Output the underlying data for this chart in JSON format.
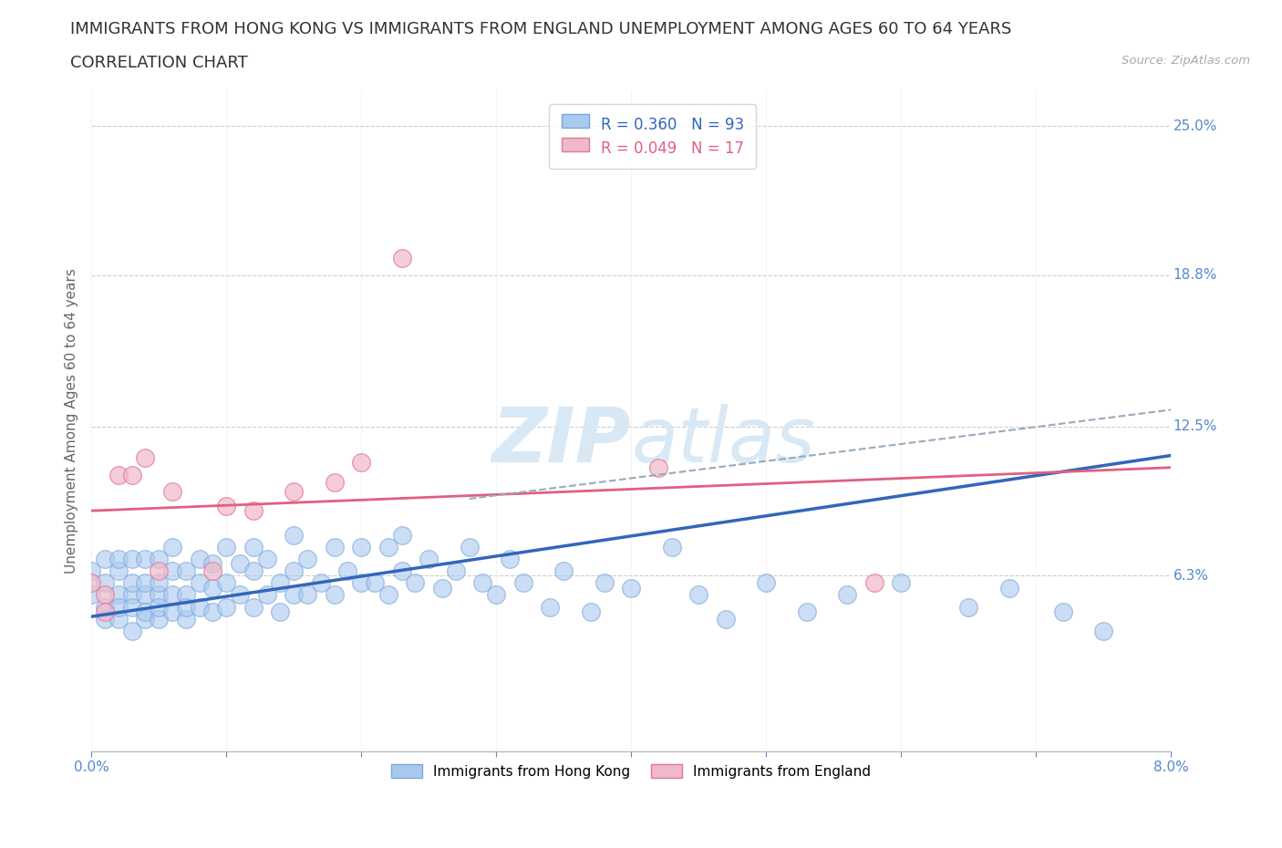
{
  "title_line1": "IMMIGRANTS FROM HONG KONG VS IMMIGRANTS FROM ENGLAND UNEMPLOYMENT AMONG AGES 60 TO 64 YEARS",
  "title_line2": "CORRELATION CHART",
  "source_text": "Source: ZipAtlas.com",
  "ylabel": "Unemployment Among Ages 60 to 64 years",
  "xlim": [
    0.0,
    0.08
  ],
  "ylim": [
    -0.01,
    0.265
  ],
  "ytick_vals": [
    0.063,
    0.125,
    0.188,
    0.25
  ],
  "ytick_labels": [
    "6.3%",
    "12.5%",
    "18.8%",
    "25.0%"
  ],
  "xtick_vals": [
    0.0,
    0.01,
    0.02,
    0.03,
    0.04,
    0.05,
    0.06,
    0.07,
    0.08
  ],
  "xtick_labels": [
    "0.0%",
    "",
    "",
    "",
    "",
    "",
    "",
    "",
    "8.0%"
  ],
  "hk_color": "#aac9f0",
  "hk_edge_color": "#7aa8d8",
  "eng_color": "#f0b8c8",
  "eng_edge_color": "#e07898",
  "hk_trend_color": "#3366bb",
  "eng_trend_color": "#e06080",
  "grid_color": "#cccccc",
  "bg_color": "#ffffff",
  "watermark_color": "#d8e8f5",
  "legend_hk_r": "R = 0.360",
  "legend_hk_n": "N = 93",
  "legend_eng_r": "R = 0.049",
  "legend_eng_n": "N = 17",
  "hk_scatter_x": [
    0.0,
    0.0,
    0.001,
    0.001,
    0.001,
    0.001,
    0.002,
    0.002,
    0.002,
    0.002,
    0.002,
    0.003,
    0.003,
    0.003,
    0.003,
    0.003,
    0.004,
    0.004,
    0.004,
    0.004,
    0.004,
    0.005,
    0.005,
    0.005,
    0.005,
    0.005,
    0.006,
    0.006,
    0.006,
    0.006,
    0.007,
    0.007,
    0.007,
    0.007,
    0.008,
    0.008,
    0.008,
    0.009,
    0.009,
    0.009,
    0.01,
    0.01,
    0.01,
    0.011,
    0.011,
    0.012,
    0.012,
    0.012,
    0.013,
    0.013,
    0.014,
    0.014,
    0.015,
    0.015,
    0.015,
    0.016,
    0.016,
    0.017,
    0.018,
    0.018,
    0.019,
    0.02,
    0.02,
    0.021,
    0.022,
    0.022,
    0.023,
    0.023,
    0.024,
    0.025,
    0.026,
    0.027,
    0.028,
    0.029,
    0.03,
    0.031,
    0.032,
    0.034,
    0.035,
    0.037,
    0.038,
    0.04,
    0.043,
    0.045,
    0.047,
    0.05,
    0.053,
    0.056,
    0.06,
    0.065,
    0.068,
    0.072,
    0.075
  ],
  "hk_scatter_y": [
    0.055,
    0.065,
    0.045,
    0.06,
    0.07,
    0.05,
    0.045,
    0.055,
    0.065,
    0.07,
    0.05,
    0.04,
    0.055,
    0.06,
    0.07,
    0.05,
    0.045,
    0.055,
    0.06,
    0.07,
    0.048,
    0.045,
    0.055,
    0.06,
    0.07,
    0.05,
    0.055,
    0.065,
    0.075,
    0.048,
    0.045,
    0.055,
    0.065,
    0.05,
    0.05,
    0.06,
    0.07,
    0.048,
    0.058,
    0.068,
    0.05,
    0.06,
    0.075,
    0.055,
    0.068,
    0.05,
    0.065,
    0.075,
    0.055,
    0.07,
    0.048,
    0.06,
    0.055,
    0.065,
    0.08,
    0.055,
    0.07,
    0.06,
    0.055,
    0.075,
    0.065,
    0.06,
    0.075,
    0.06,
    0.055,
    0.075,
    0.065,
    0.08,
    0.06,
    0.07,
    0.058,
    0.065,
    0.075,
    0.06,
    0.055,
    0.07,
    0.06,
    0.05,
    0.065,
    0.048,
    0.06,
    0.058,
    0.075,
    0.055,
    0.045,
    0.06,
    0.048,
    0.055,
    0.06,
    0.05,
    0.058,
    0.048,
    0.04
  ],
  "eng_scatter_x": [
    0.0,
    0.001,
    0.001,
    0.002,
    0.003,
    0.004,
    0.005,
    0.006,
    0.009,
    0.01,
    0.012,
    0.015,
    0.018,
    0.02,
    0.023,
    0.042,
    0.058
  ],
  "eng_scatter_y": [
    0.06,
    0.055,
    0.048,
    0.105,
    0.105,
    0.112,
    0.065,
    0.098,
    0.065,
    0.092,
    0.09,
    0.098,
    0.102,
    0.11,
    0.195,
    0.108,
    0.06
  ],
  "hk_trend_x": [
    0.0,
    0.08
  ],
  "hk_trend_y": [
    0.046,
    0.113
  ],
  "eng_trend_x": [
    0.0,
    0.08
  ],
  "eng_trend_y": [
    0.09,
    0.108
  ],
  "dashed_line_x": [
    0.028,
    0.08
  ],
  "dashed_line_y": [
    0.095,
    0.132
  ],
  "dashed_color": "#99aabb",
  "title_fontsize": 13,
  "label_fontsize": 11,
  "tick_fontsize": 11,
  "legend_fontsize": 12,
  "axis_label_color": "#666666",
  "tick_label_color": "#5588cc",
  "title_color": "#333333",
  "n_color": "#cc3333"
}
